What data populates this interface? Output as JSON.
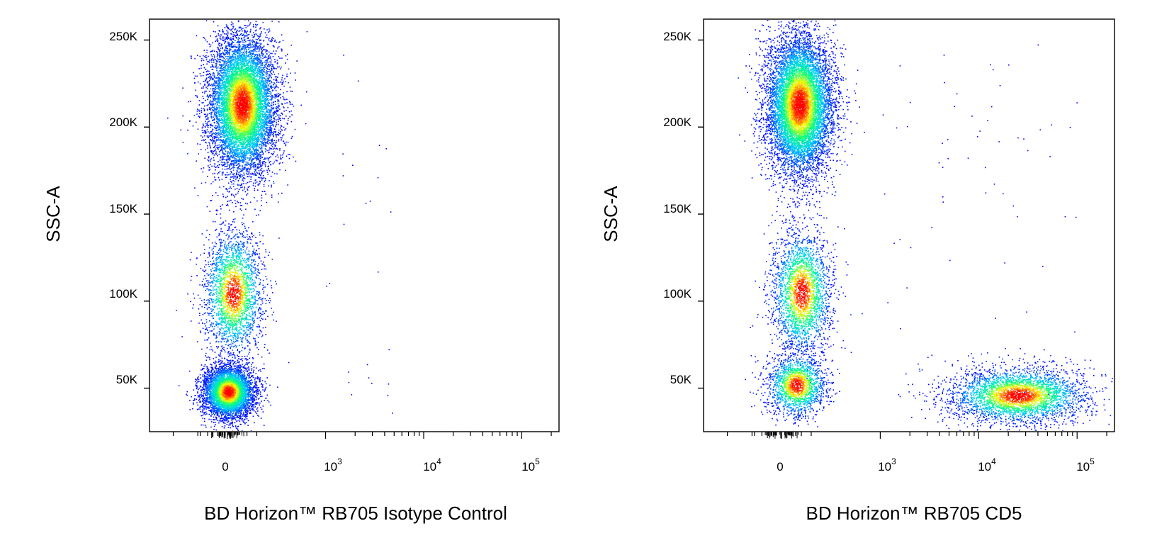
{
  "chart_data": [
    {
      "type": "scatter",
      "subtype": "flow-cytometry-density-dot-plot",
      "xlabel": "BD Horizon™ RB705 Isotype Control",
      "ylabel": "SSC-A",
      "x_scale": "biexponential",
      "y_scale": "linear",
      "ylim": [
        25000,
        262000
      ],
      "x_ticks": [
        {
          "value": 0,
          "label": "0"
        },
        {
          "value": 1000,
          "label": "10",
          "exp": "3"
        },
        {
          "value": 10000,
          "label": "10",
          "exp": "4"
        },
        {
          "value": 100000,
          "label": "10",
          "exp": "5"
        }
      ],
      "y_ticks": [
        {
          "value": 50000,
          "label": "50K"
        },
        {
          "value": 100000,
          "label": "100K"
        },
        {
          "value": 150000,
          "label": "150K"
        },
        {
          "value": 200000,
          "label": "200K"
        },
        {
          "value": 250000,
          "label": "250K"
        }
      ],
      "grid": false,
      "color_scale": [
        "#0000ff",
        "#00c8ff",
        "#00ff80",
        "#ffff00",
        "#ff0000"
      ],
      "populations": [
        {
          "name": "",
          "x_center": 150,
          "y_center": 213000,
          "count": 9000,
          "x_spread": 170,
          "y_spread": 20000
        },
        {
          "name": "",
          "x_center": 60,
          "y_center": 105000,
          "count": 2600,
          "x_spread": 150,
          "y_spread": 18000
        },
        {
          "name": "",
          "x_center": 10,
          "y_center": 48000,
          "count": 5200,
          "x_spread": 130,
          "y_spread": 7500
        }
      ]
    },
    {
      "type": "scatter",
      "subtype": "flow-cytometry-density-dot-plot",
      "xlabel": "BD Horizon™ RB705 CD5",
      "ylabel": "SSC-A",
      "x_scale": "biexponential",
      "y_scale": "linear",
      "ylim": [
        25000,
        262000
      ],
      "x_ticks": [
        {
          "value": 0,
          "label": "0"
        },
        {
          "value": 1000,
          "label": "10",
          "exp": "3"
        },
        {
          "value": 10000,
          "label": "10",
          "exp": "4"
        },
        {
          "value": 100000,
          "label": "10",
          "exp": "5"
        }
      ],
      "y_ticks": [
        {
          "value": 50000,
          "label": "50K"
        },
        {
          "value": 100000,
          "label": "100K"
        },
        {
          "value": 150000,
          "label": "150K"
        },
        {
          "value": 200000,
          "label": "200K"
        },
        {
          "value": 250000,
          "label": "250K"
        }
      ],
      "grid": false,
      "color_scale": [
        "#0000ff",
        "#00c8ff",
        "#00ff80",
        "#ffff00",
        "#ff0000"
      ],
      "populations": [
        {
          "name": "",
          "x_center": 180,
          "y_center": 213000,
          "count": 9000,
          "x_spread": 170,
          "y_spread": 20000
        },
        {
          "name": "",
          "x_center": 200,
          "y_center": 105000,
          "count": 2600,
          "x_spread": 150,
          "y_spread": 18000
        },
        {
          "name": "",
          "x_center": 150,
          "y_center": 52000,
          "count": 1800,
          "x_spread": 150,
          "y_spread": 9000
        },
        {
          "name": "",
          "x_center": 25000,
          "y_center": 46000,
          "count": 3600,
          "x_spread": 0.35,
          "y_spread": 8000
        }
      ]
    }
  ]
}
